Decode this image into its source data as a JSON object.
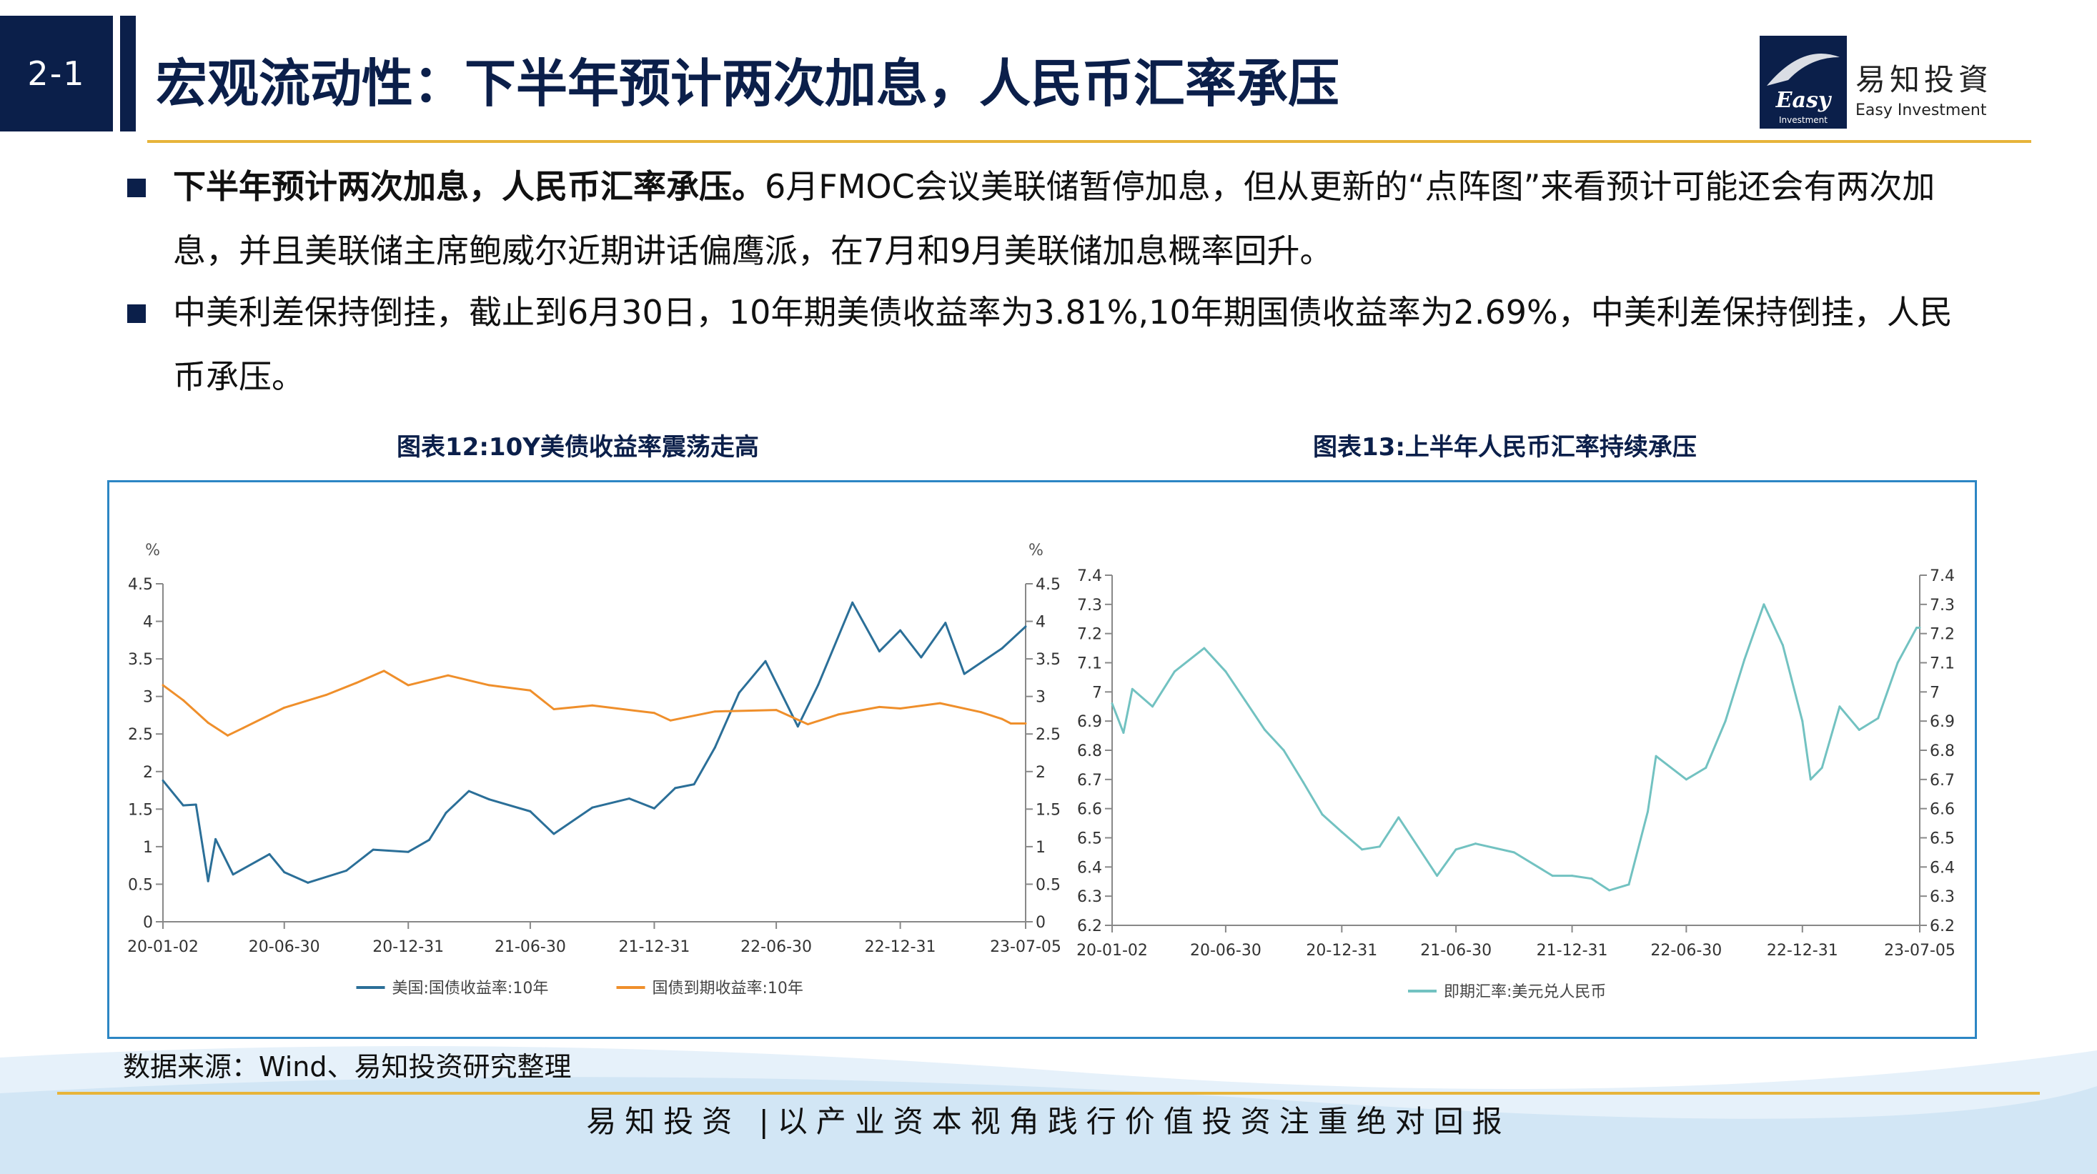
{
  "header": {
    "section_number": "2-1",
    "title": "宏观流动性：下半年预计两次加息，人民币汇率承压",
    "logo_cn": "易知投資",
    "logo_en": "Easy Investment",
    "logo_mark_text": "Easy",
    "logo_mark_sub": "Investment"
  },
  "bullets": [
    {
      "bold": "下半年预计两次加息，人民币汇率承压。",
      "text": "6月FMOC会议美联储暂停加息，但从更新的“点阵图”来看预计可能还会有两次加息，并且美联储主席鲍威尔近期讲话偏鹰派，在7月和9月美联储加息概率回升。"
    },
    {
      "bold": "",
      "text": "中美利差保持倒挂，截止到6月30日，10年期美债收益率为3.81%,10年期国债收益率为2.69%，中美利差保持倒挂，人民币承压。"
    }
  ],
  "colors": {
    "navy": "#0b1f4a",
    "gold": "#e7b43a",
    "frame_blue": "#2c86c4",
    "series_us": "#2b6f98",
    "series_cn": "#ef8f2b",
    "series_fx": "#72c2c1"
  },
  "chart_data": [
    {
      "type": "line",
      "title": "图表12:10Y美债收益率震荡走高",
      "y_unit_left": "%",
      "y_unit_right": "%",
      "ylim": [
        0,
        4.5
      ],
      "yticks": [
        "0",
        "0.5",
        "1",
        "1.5",
        "2",
        "2.5",
        "3",
        "3.5",
        "4",
        "4.5"
      ],
      "xticks": [
        "20-01-02",
        "20-06-30",
        "20-12-31",
        "21-06-30",
        "21-12-31",
        "22-06-30",
        "22-12-31",
        "23-07-05"
      ],
      "grid": false,
      "legend_position": "bottom",
      "series": [
        {
          "name": "美国:国债收益率:10年",
          "color": "#2b6f98",
          "x": [
            "20-01-02",
            "20-02-01",
            "20-02-20",
            "20-03-09",
            "20-03-20",
            "20-04-15",
            "20-06-08",
            "20-06-30",
            "20-08-04",
            "20-09-30",
            "20-11-09",
            "20-12-31",
            "21-01-31",
            "21-02-25",
            "21-03-31",
            "21-04-30",
            "21-06-30",
            "21-08-04",
            "21-09-30",
            "21-11-24",
            "21-12-31",
            "22-01-31",
            "22-02-28",
            "22-03-31",
            "22-05-06",
            "22-06-14",
            "22-08-01",
            "22-08-31",
            "22-10-21",
            "22-11-30",
            "22-12-31",
            "23-01-31",
            "23-03-08",
            "23-04-05",
            "23-05-31",
            "23-07-05"
          ],
          "values": [
            1.88,
            1.55,
            1.56,
            0.54,
            1.1,
            0.63,
            0.9,
            0.66,
            0.52,
            0.68,
            0.96,
            0.93,
            1.09,
            1.45,
            1.74,
            1.63,
            1.47,
            1.17,
            1.52,
            1.64,
            1.51,
            1.78,
            1.83,
            2.32,
            3.05,
            3.47,
            2.6,
            3.15,
            4.25,
            3.6,
            3.88,
            3.52,
            3.98,
            3.3,
            3.64,
            3.93
          ]
        },
        {
          "name": "国债到期收益率:10年",
          "color": "#ef8f2b",
          "x": [
            "20-01-02",
            "20-02-01",
            "20-03-09",
            "20-04-07",
            "20-04-30",
            "20-06-30",
            "20-08-31",
            "20-10-15",
            "20-11-25",
            "20-12-31",
            "21-02-28",
            "21-04-30",
            "21-06-30",
            "21-08-04",
            "21-09-30",
            "21-12-31",
            "22-01-24",
            "22-03-31",
            "22-06-30",
            "22-08-16",
            "22-09-30",
            "22-11-30",
            "22-12-31",
            "23-02-28",
            "23-04-30",
            "23-05-31",
            "23-06-13",
            "23-07-05"
          ],
          "values": [
            3.15,
            2.95,
            2.65,
            2.48,
            2.58,
            2.85,
            3.02,
            3.18,
            3.34,
            3.15,
            3.28,
            3.15,
            3.08,
            2.83,
            2.88,
            2.78,
            2.68,
            2.8,
            2.82,
            2.63,
            2.76,
            2.86,
            2.84,
            2.91,
            2.79,
            2.7,
            2.64,
            2.64
          ]
        }
      ]
    },
    {
      "type": "line",
      "title": "图表13:上半年人民币汇率持续承压",
      "ylim": [
        6.2,
        7.4
      ],
      "yticks": [
        "6.2",
        "6.3",
        "6.4",
        "6.5",
        "6.6",
        "6.7",
        "6.8",
        "6.9",
        "7",
        "7.1",
        "7.2",
        "7.3",
        "7.4"
      ],
      "xticks": [
        "20-01-02",
        "20-06-30",
        "20-12-31",
        "21-06-30",
        "21-12-31",
        "22-06-30",
        "22-12-31",
        "23-07-05"
      ],
      "grid": false,
      "legend_position": "bottom",
      "series": [
        {
          "name": "即期汇率:美元兑人民币",
          "color": "#72c2c1",
          "x": [
            "20-01-02",
            "20-01-20",
            "20-02-03",
            "20-03-06",
            "20-04-10",
            "20-05-27",
            "20-06-30",
            "20-07-31",
            "20-08-31",
            "20-09-30",
            "20-10-31",
            "20-11-30",
            "20-12-31",
            "21-02-01",
            "21-03-01",
            "21-03-31",
            "21-05-31",
            "21-06-30",
            "21-07-31",
            "21-09-30",
            "21-11-30",
            "21-12-31",
            "22-01-31",
            "22-02-28",
            "22-03-31",
            "22-04-30",
            "22-05-13",
            "22-06-30",
            "22-07-31",
            "22-08-31",
            "22-09-30",
            "22-10-31",
            "22-11-30",
            "22-12-31",
            "23-01-13",
            "23-01-31",
            "23-02-28",
            "23-03-31",
            "23-04-30",
            "23-05-31",
            "23-06-30",
            "23-07-05"
          ],
          "values": [
            6.96,
            6.86,
            7.01,
            6.95,
            7.07,
            7.15,
            7.07,
            6.97,
            6.87,
            6.8,
            6.69,
            6.58,
            6.52,
            6.46,
            6.47,
            6.57,
            6.37,
            6.46,
            6.48,
            6.45,
            6.37,
            6.37,
            6.36,
            6.32,
            6.34,
            6.59,
            6.78,
            6.7,
            6.74,
            6.9,
            7.11,
            7.3,
            7.16,
            6.9,
            6.7,
            6.74,
            6.95,
            6.87,
            6.91,
            7.1,
            7.22,
            7.22
          ]
        }
      ]
    }
  ],
  "source_note": "数据来源：Wind、易知投资研究整理",
  "footer": "易知投资 |以产业资本视角践行价值投资注重绝对回报"
}
